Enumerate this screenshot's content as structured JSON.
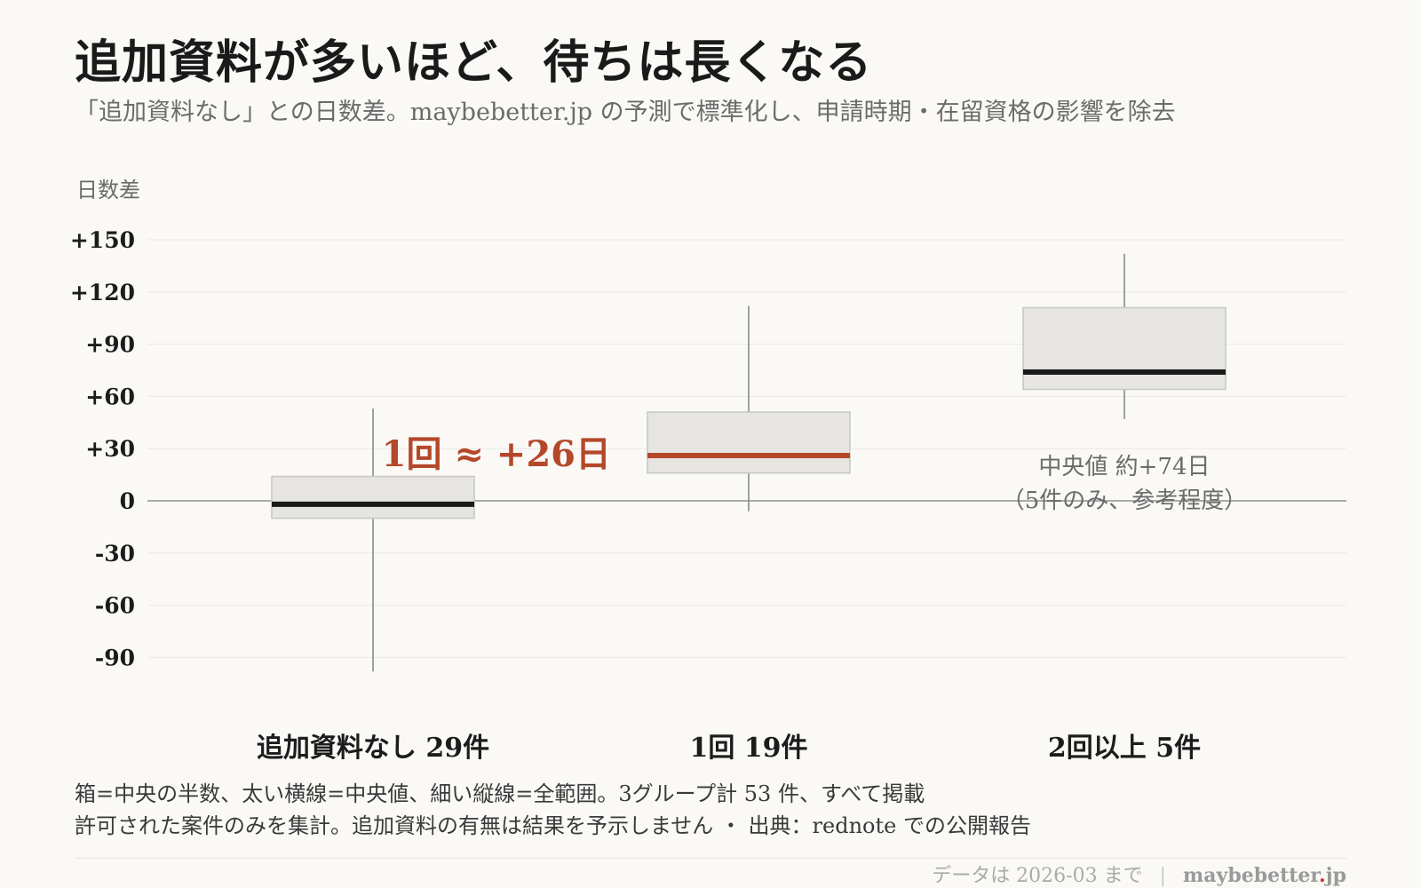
{
  "title": "追加資料が多いほど、待ちは長くなる",
  "subtitle": "「追加資料なし」との日数差。maybebetter.jp の予測で標準化し、申請時期・在留資格の影響を除去",
  "colors": {
    "background": "#faf9f6",
    "box_fill": "#e6e5e1",
    "box_stroke": "#c9c8c4",
    "whisker": "#8a8a8a",
    "median_default": "#1a1a1a",
    "accent": "#b5482a",
    "grid": "#ebe9e4",
    "zero_line": "#8f8f8f",
    "annotation_gray": "#6b6b6b"
  },
  "chart_data": {
    "type": "box",
    "ylabel": "日数差",
    "ylim": [
      -100,
      150
    ],
    "yticks": [
      150,
      120,
      90,
      60,
      30,
      0,
      -30,
      -60,
      -90
    ],
    "ytick_labels": [
      "+150",
      "+120",
      "+90",
      "+60",
      "+30",
      "0",
      "-30",
      "-60",
      "-90"
    ],
    "grid": true,
    "categories": [
      "追加資料なし 29件",
      "1回 19件",
      "2回以上 5件"
    ],
    "boxes": [
      {
        "label": "追加資料なし 29件",
        "min": -98,
        "q1": -10,
        "median": -2,
        "q3": 14,
        "max": 53,
        "highlight": false
      },
      {
        "label": "1回 19件",
        "min": -6,
        "q1": 16,
        "median": 26,
        "q3": 51,
        "max": 112,
        "highlight": true
      },
      {
        "label": "2回以上 5件",
        "min": 47,
        "q1": 64,
        "median": 74,
        "q3": 111,
        "max": 142,
        "highlight": false
      }
    ],
    "annotations": [
      {
        "text": "1回 ≈ +26日",
        "target": 1,
        "accent": true
      },
      {
        "text": "中央値 約+74日",
        "target": 2,
        "accent": false
      },
      {
        "text": "（5件のみ、参考程度）",
        "target": 2,
        "accent": false
      }
    ]
  },
  "notes": {
    "line1": "箱=中央の半数、太い横線=中央値、細い縦線=全範囲。3グループ計 53 件、すべて掲載",
    "line2": "許可された案件のみを集計。追加資料の有無は結果を予示しません ・ 出典：rednote での公開報告"
  },
  "footer": {
    "date_text": "データは 2026-03 まで",
    "separator": "|",
    "brand_main": "maybebetter",
    "brand_dot": ".",
    "brand_tld": "jp"
  }
}
